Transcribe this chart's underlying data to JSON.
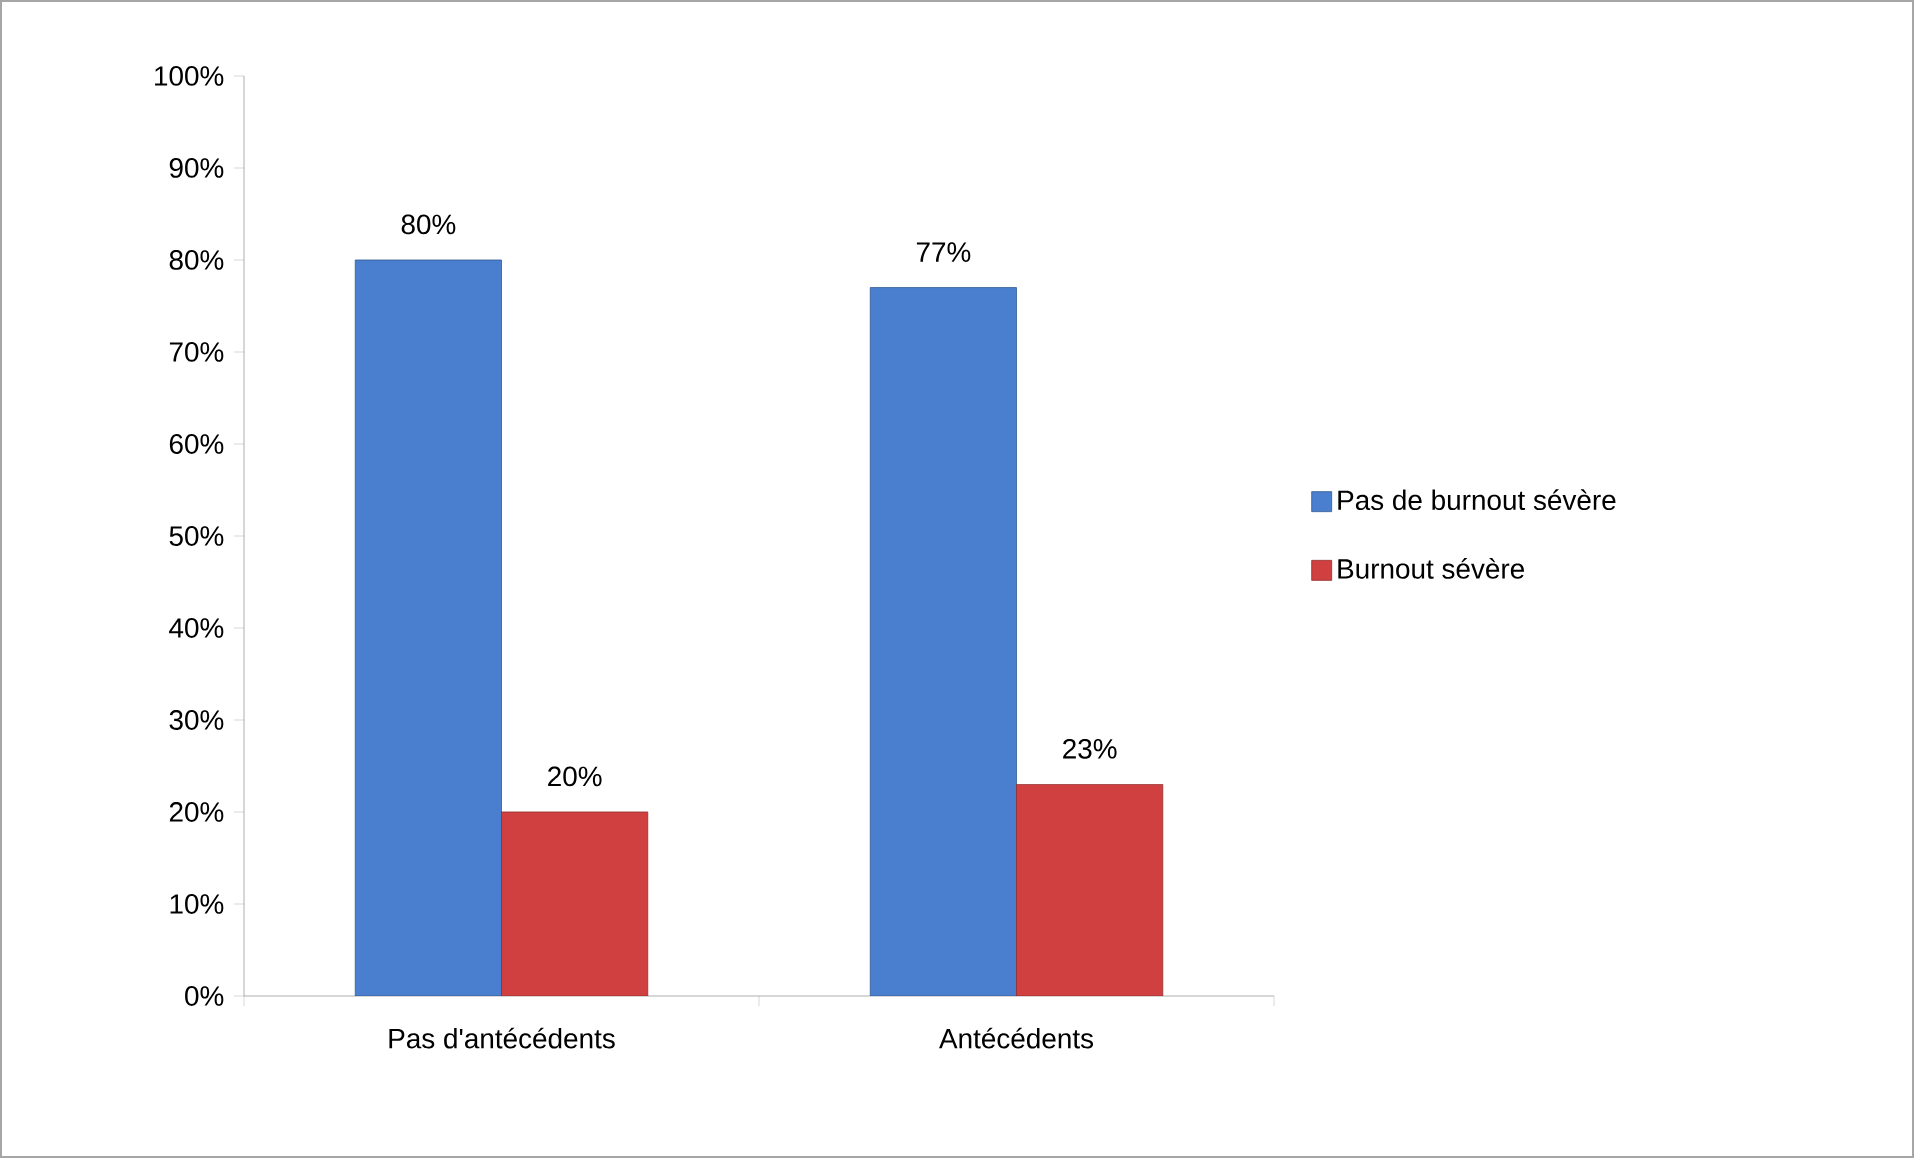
{
  "chart_data": {
    "type": "bar",
    "categories": [
      "Pas d'antécédents",
      "Antécédents"
    ],
    "series": [
      {
        "name": "Pas de burnout sévère",
        "color": "#4a7fd0",
        "values": [
          80,
          77
        ],
        "value_labels": [
          "80%",
          "77%"
        ]
      },
      {
        "name": "Burnout sévère",
        "color": "#d04040",
        "values": [
          20,
          23
        ],
        "value_labels": [
          "20%",
          "23%"
        ]
      }
    ],
    "ylim": [
      0,
      100
    ],
    "yticks": [
      {
        "value": 0,
        "label": "0%"
      },
      {
        "value": 10,
        "label": "10%"
      },
      {
        "value": 20,
        "label": "20%"
      },
      {
        "value": 30,
        "label": "30%"
      },
      {
        "value": 40,
        "label": "40%"
      },
      {
        "value": 50,
        "label": "50%"
      },
      {
        "value": 60,
        "label": "60%"
      },
      {
        "value": 70,
        "label": "70%"
      },
      {
        "value": 80,
        "label": "80%"
      },
      {
        "value": 90,
        "label": "90%"
      },
      {
        "value": 100,
        "label": "100%"
      }
    ],
    "grid": false,
    "legend": "right"
  }
}
